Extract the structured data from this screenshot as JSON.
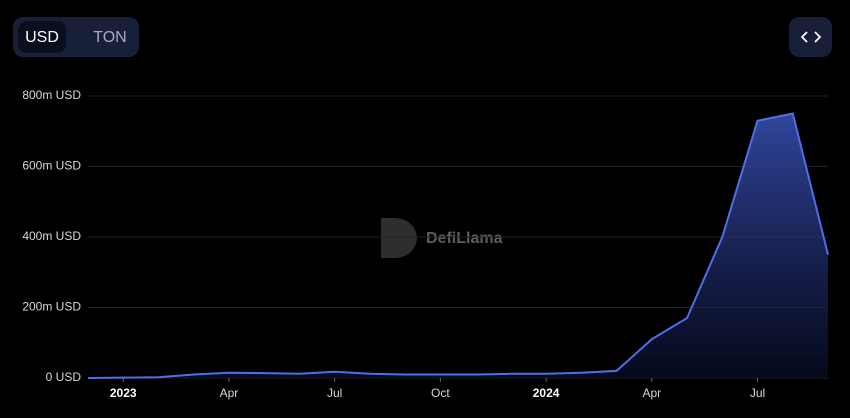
{
  "toggle": {
    "options": [
      "USD",
      "TON"
    ],
    "selected": "USD"
  },
  "watermark": "DefiLlama",
  "chart_data": {
    "type": "area",
    "x": [
      "2022-12",
      "2023-01",
      "2023-02",
      "2023-03",
      "2023-04",
      "2023-05",
      "2023-06",
      "2023-07",
      "2023-08",
      "2023-09",
      "2023-10",
      "2023-11",
      "2023-12",
      "2024-01",
      "2024-02",
      "2024-03",
      "2024-04",
      "2024-05",
      "2024-06",
      "2024-07",
      "2024-08",
      "2024-09"
    ],
    "values": [
      0,
      1000000,
      2000000,
      10000000,
      15000000,
      14000000,
      12000000,
      18000000,
      12000000,
      10000000,
      10000000,
      10000000,
      12000000,
      12000000,
      15000000,
      20000000,
      110000000,
      170000000,
      400000000,
      730000000,
      750000000,
      350000000
    ],
    "color": "#4f6fe8",
    "xlim": [
      "2022-12",
      "2024-09"
    ],
    "xticks": [
      {
        "value": "2023-01",
        "label": "2023"
      },
      {
        "value": "2023-04",
        "label": "Apr"
      },
      {
        "value": "2023-07",
        "label": "Jul"
      },
      {
        "value": "2023-10",
        "label": "Oct"
      },
      {
        "value": "2024-01",
        "label": "2024"
      },
      {
        "value": "2024-04",
        "label": "Apr"
      },
      {
        "value": "2024-07",
        "label": "Jul"
      }
    ],
    "ylim": [
      0,
      800000000
    ],
    "yticks": [
      {
        "value": 0,
        "label": "0 USD"
      },
      {
        "value": 200000000,
        "label": "200m USD"
      },
      {
        "value": 400000000,
        "label": "400m USD"
      },
      {
        "value": 600000000,
        "label": "600m USD"
      },
      {
        "value": 800000000,
        "label": "800m USD"
      }
    ],
    "grid": true
  }
}
